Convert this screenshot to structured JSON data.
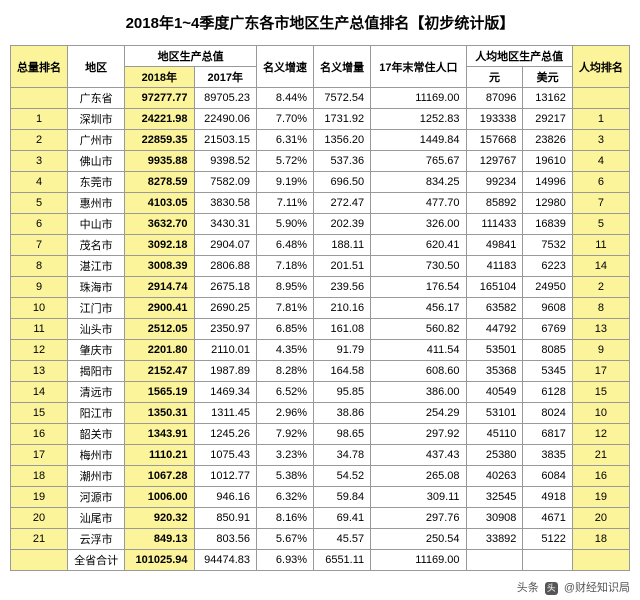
{
  "title": "2018年1~4季度广东各市地区生产总值排名【初步统计版】",
  "headers": {
    "rank_total": "总量排名",
    "region": "地区",
    "gdp": "地区生产总值",
    "gdp_2018": "2018年",
    "gdp_2017": "2017年",
    "nom_growth": "名义增速",
    "nom_incr": "名义增量",
    "pop": "17年末常住人口",
    "percap": "人均地区生产总值",
    "yuan": "元",
    "usd": "美元",
    "rank_percap": "人均排名"
  },
  "province_row": {
    "region": "广东省",
    "y2018": "97277.77",
    "y2017": "89705.23",
    "growth": "8.44%",
    "incr": "7572.54",
    "pop": "11169.00",
    "yuan": "87096",
    "usd": "13162"
  },
  "rows": [
    {
      "r": "1",
      "region": "深圳市",
      "y2018": "24221.98",
      "y2017": "22490.06",
      "growth": "7.70%",
      "incr": "1731.92",
      "pop": "1252.83",
      "yuan": "193338",
      "usd": "29217",
      "pr": "1"
    },
    {
      "r": "2",
      "region": "广州市",
      "y2018": "22859.35",
      "y2017": "21503.15",
      "growth": "6.31%",
      "incr": "1356.20",
      "pop": "1449.84",
      "yuan": "157668",
      "usd": "23826",
      "pr": "3"
    },
    {
      "r": "3",
      "region": "佛山市",
      "y2018": "9935.88",
      "y2017": "9398.52",
      "growth": "5.72%",
      "incr": "537.36",
      "pop": "765.67",
      "yuan": "129767",
      "usd": "19610",
      "pr": "4"
    },
    {
      "r": "4",
      "region": "东莞市",
      "y2018": "8278.59",
      "y2017": "7582.09",
      "growth": "9.19%",
      "incr": "696.50",
      "pop": "834.25",
      "yuan": "99234",
      "usd": "14996",
      "pr": "6"
    },
    {
      "r": "5",
      "region": "惠州市",
      "y2018": "4103.05",
      "y2017": "3830.58",
      "growth": "7.11%",
      "incr": "272.47",
      "pop": "477.70",
      "yuan": "85892",
      "usd": "12980",
      "pr": "7"
    },
    {
      "r": "6",
      "region": "中山市",
      "y2018": "3632.70",
      "y2017": "3430.31",
      "growth": "5.90%",
      "incr": "202.39",
      "pop": "326.00",
      "yuan": "111433",
      "usd": "16839",
      "pr": "5"
    },
    {
      "r": "7",
      "region": "茂名市",
      "y2018": "3092.18",
      "y2017": "2904.07",
      "growth": "6.48%",
      "incr": "188.11",
      "pop": "620.41",
      "yuan": "49841",
      "usd": "7532",
      "pr": "11"
    },
    {
      "r": "8",
      "region": "湛江市",
      "y2018": "3008.39",
      "y2017": "2806.88",
      "growth": "7.18%",
      "incr": "201.51",
      "pop": "730.50",
      "yuan": "41183",
      "usd": "6223",
      "pr": "14"
    },
    {
      "r": "9",
      "region": "珠海市",
      "y2018": "2914.74",
      "y2017": "2675.18",
      "growth": "8.95%",
      "incr": "239.56",
      "pop": "176.54",
      "yuan": "165104",
      "usd": "24950",
      "pr": "2"
    },
    {
      "r": "10",
      "region": "江门市",
      "y2018": "2900.41",
      "y2017": "2690.25",
      "growth": "7.81%",
      "incr": "210.16",
      "pop": "456.17",
      "yuan": "63582",
      "usd": "9608",
      "pr": "8"
    },
    {
      "r": "11",
      "region": "汕头市",
      "y2018": "2512.05",
      "y2017": "2350.97",
      "growth": "6.85%",
      "incr": "161.08",
      "pop": "560.82",
      "yuan": "44792",
      "usd": "6769",
      "pr": "13"
    },
    {
      "r": "12",
      "region": "肇庆市",
      "y2018": "2201.80",
      "y2017": "2110.01",
      "growth": "4.35%",
      "incr": "91.79",
      "pop": "411.54",
      "yuan": "53501",
      "usd": "8085",
      "pr": "9"
    },
    {
      "r": "13",
      "region": "揭阳市",
      "y2018": "2152.47",
      "y2017": "1987.89",
      "growth": "8.28%",
      "incr": "164.58",
      "pop": "608.60",
      "yuan": "35368",
      "usd": "5345",
      "pr": "17"
    },
    {
      "r": "14",
      "region": "清远市",
      "y2018": "1565.19",
      "y2017": "1469.34",
      "growth": "6.52%",
      "incr": "95.85",
      "pop": "386.00",
      "yuan": "40549",
      "usd": "6128",
      "pr": "15"
    },
    {
      "r": "15",
      "region": "阳江市",
      "y2018": "1350.31",
      "y2017": "1311.45",
      "growth": "2.96%",
      "incr": "38.86",
      "pop": "254.29",
      "yuan": "53101",
      "usd": "8024",
      "pr": "10"
    },
    {
      "r": "16",
      "region": "韶关市",
      "y2018": "1343.91",
      "y2017": "1245.26",
      "growth": "7.92%",
      "incr": "98.65",
      "pop": "297.92",
      "yuan": "45110",
      "usd": "6817",
      "pr": "12"
    },
    {
      "r": "17",
      "region": "梅州市",
      "y2018": "1110.21",
      "y2017": "1075.43",
      "growth": "3.23%",
      "incr": "34.78",
      "pop": "437.43",
      "yuan": "25380",
      "usd": "3835",
      "pr": "21"
    },
    {
      "r": "18",
      "region": "潮州市",
      "y2018": "1067.28",
      "y2017": "1012.77",
      "growth": "5.38%",
      "incr": "54.52",
      "pop": "265.08",
      "yuan": "40263",
      "usd": "6084",
      "pr": "16"
    },
    {
      "r": "19",
      "region": "河源市",
      "y2018": "1006.00",
      "y2017": "946.16",
      "growth": "6.32%",
      "incr": "59.84",
      "pop": "309.11",
      "yuan": "32545",
      "usd": "4918",
      "pr": "19"
    },
    {
      "r": "20",
      "region": "汕尾市",
      "y2018": "920.32",
      "y2017": "850.91",
      "growth": "8.16%",
      "incr": "69.41",
      "pop": "297.76",
      "yuan": "30908",
      "usd": "4671",
      "pr": "20"
    },
    {
      "r": "21",
      "region": "云浮市",
      "y2018": "849.13",
      "y2017": "803.56",
      "growth": "5.67%",
      "incr": "45.57",
      "pop": "250.54",
      "yuan": "33892",
      "usd": "5122",
      "pr": "18"
    }
  ],
  "total_row": {
    "label": "全省合计",
    "y2018": "101025.94",
    "y2017": "94474.83",
    "growth": "6.93%",
    "incr": "6551.11",
    "pop": "11169.00"
  },
  "footer": {
    "prefix": "头条",
    "author": "@财经知识局"
  },
  "colors": {
    "highlight": "#fcf49a",
    "border": "#999999",
    "text": "#000000"
  }
}
